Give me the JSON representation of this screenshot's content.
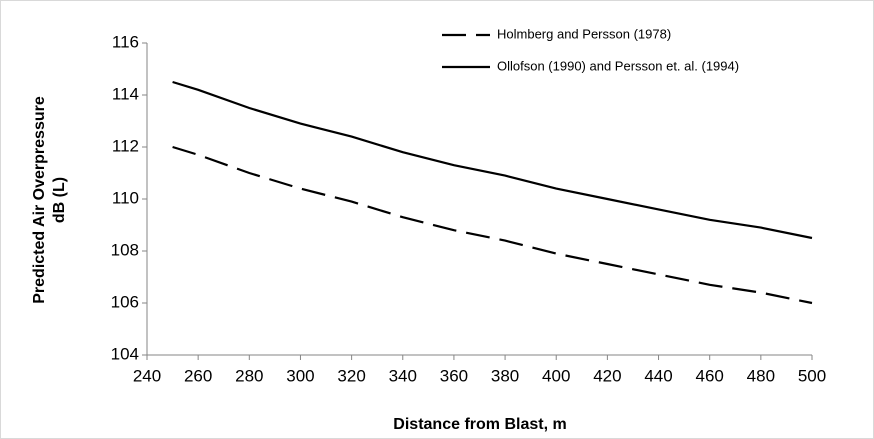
{
  "chart_data": {
    "type": "line",
    "xlabel": "Distance from Blast, m",
    "ylabel": [
      "Predicted Air Overpressure",
      "dB (L)"
    ],
    "x": [
      250,
      260,
      280,
      300,
      320,
      340,
      360,
      380,
      400,
      420,
      440,
      460,
      480,
      500
    ],
    "series": [
      {
        "name": "Holmberg and Persson (1978)",
        "color": "#000000",
        "dash": "dashed",
        "values": [
          112.0,
          111.7,
          111.0,
          110.4,
          109.9,
          109.3,
          108.8,
          108.4,
          107.9,
          107.5,
          107.1,
          106.7,
          106.4,
          106.0
        ]
      },
      {
        "name": "Ollofson (1990) and Persson et. al. (1994)",
        "color": "#000000",
        "dash": "solid",
        "values": [
          114.5,
          114.2,
          113.5,
          112.9,
          112.4,
          111.8,
          111.3,
          110.9,
          110.4,
          110.0,
          109.6,
          109.2,
          108.9,
          108.5
        ]
      }
    ],
    "xlim": [
      240,
      500
    ],
    "xticks": [
      240,
      260,
      280,
      300,
      320,
      340,
      360,
      380,
      400,
      420,
      440,
      460,
      480,
      500
    ],
    "ylim": [
      104,
      116
    ],
    "yticks": [
      104,
      106,
      108,
      110,
      112,
      114,
      116
    ],
    "grid": false,
    "legend": "top-right"
  }
}
